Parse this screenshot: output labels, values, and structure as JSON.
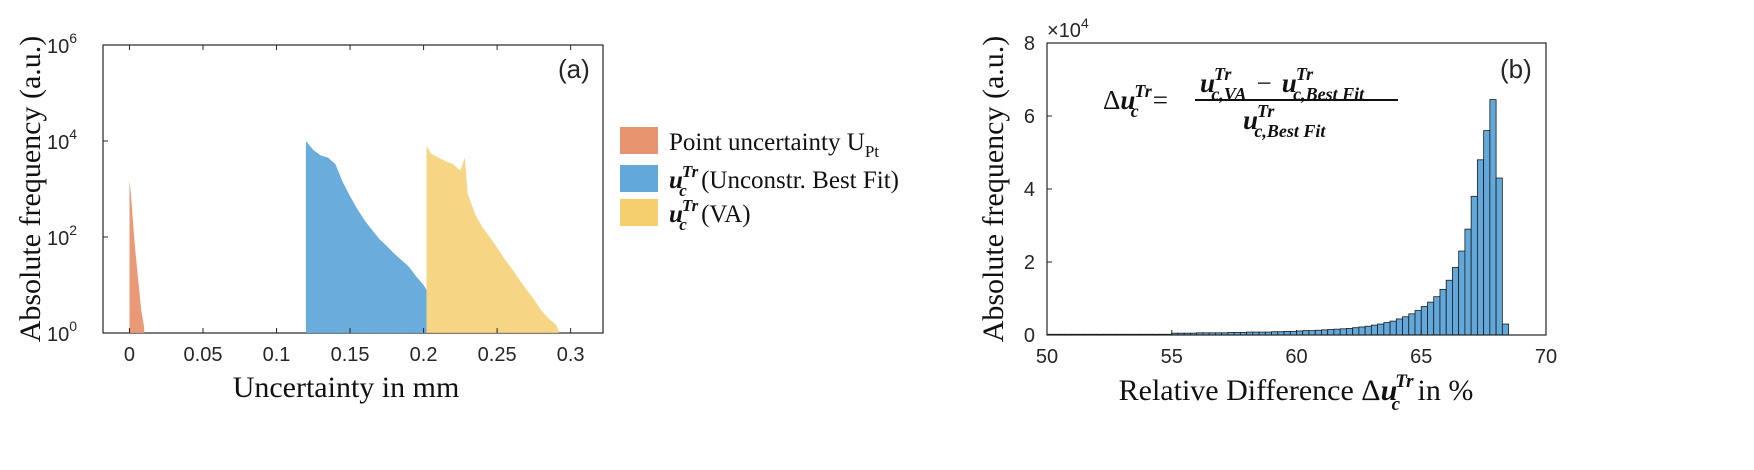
{
  "chart_data": [
    {
      "type": "histogram",
      "panel_label": "(a)",
      "xlabel": "Uncertainty in mm",
      "ylabel": "Absolute frequency (a.u.)",
      "xlim": [
        -0.018,
        0.322
      ],
      "ylim": [
        1,
        1000000
      ],
      "yscale": "log",
      "x_ticks": [
        0,
        0.05,
        0.1,
        0.15,
        0.2,
        0.25,
        0.3
      ],
      "x_tick_labels": [
        "0",
        "0.05",
        "0.1",
        "0.15",
        "0.2",
        "0.25",
        "0.3"
      ],
      "y_ticks": [
        {
          "base": "10",
          "exp": "0",
          "value": 1
        },
        {
          "base": "10",
          "exp": "2",
          "value": 100
        },
        {
          "base": "10",
          "exp": "4",
          "value": 10000
        },
        {
          "base": "10",
          "exp": "6",
          "value": 1000000
        }
      ],
      "legend_position": "outside-right",
      "legend": [
        {
          "text": "Point uncertainty U",
          "sub": "Pt",
          "color": "#e8946e"
        },
        {
          "sym": "u",
          "sub": "c",
          "sup": "Tr",
          "text": " (Unconstr. Best Fit)",
          "color": "#62a8da"
        },
        {
          "sym": "u",
          "sub": "c",
          "sup": "Tr",
          "text": " (VA)",
          "color": "#f5cf6e"
        }
      ],
      "series": [
        {
          "color": "#e8946e",
          "points": [
            [
              0.0,
              1500
            ],
            [
              0.001,
              800
            ],
            [
              0.002,
              300
            ],
            [
              0.003,
              120
            ],
            [
              0.004,
              50
            ],
            [
              0.005,
              25
            ],
            [
              0.006,
              12
            ],
            [
              0.007,
              6
            ],
            [
              0.008,
              3
            ],
            [
              0.009,
              2
            ],
            [
              0.01,
              1.3
            ]
          ]
        },
        {
          "color": "#62a8da",
          "points": [
            [
              0.12,
              10000
            ],
            [
              0.125,
              6500
            ],
            [
              0.13,
              5000
            ],
            [
              0.135,
              4500
            ],
            [
              0.14,
              3300
            ],
            [
              0.145,
              1400
            ],
            [
              0.15,
              700
            ],
            [
              0.155,
              380
            ],
            [
              0.16,
              220
            ],
            [
              0.165,
              140
            ],
            [
              0.17,
              90
            ],
            [
              0.175,
              65
            ],
            [
              0.18,
              45
            ],
            [
              0.185,
              33
            ],
            [
              0.19,
              24
            ],
            [
              0.195,
              15
            ],
            [
              0.2,
              10
            ],
            [
              0.202,
              8
            ]
          ]
        },
        {
          "color": "#f5cf6e",
          "points": [
            [
              0.202,
              8000
            ],
            [
              0.205,
              5500
            ],
            [
              0.21,
              4500
            ],
            [
              0.215,
              3800
            ],
            [
              0.22,
              3300
            ],
            [
              0.225,
              2400
            ],
            [
              0.228,
              4500
            ],
            [
              0.23,
              800
            ],
            [
              0.235,
              300
            ],
            [
              0.24,
              160
            ],
            [
              0.245,
              100
            ],
            [
              0.25,
              60
            ],
            [
              0.255,
              35
            ],
            [
              0.26,
              22
            ],
            [
              0.265,
              13
            ],
            [
              0.27,
              8
            ],
            [
              0.275,
              5
            ],
            [
              0.28,
              3
            ],
            [
              0.285,
              2
            ],
            [
              0.29,
              1.5
            ],
            [
              0.292,
              1.1
            ]
          ]
        }
      ]
    },
    {
      "type": "histogram",
      "panel_label": "(b)",
      "xlabel": "Relative Difference",
      "xlabel_tail": " in %",
      "ylabel": "Absolute frequency (a.u.)",
      "xlim": [
        50,
        70
      ],
      "ylim": [
        0,
        8
      ],
      "y_multiplier": {
        "base": "10",
        "exp": "4"
      },
      "x_ticks": [
        50,
        55,
        60,
        65,
        70
      ],
      "y_ticks": [
        0,
        2,
        4,
        6,
        8
      ],
      "formula": {
        "lhs_delta": "Δ",
        "sym": "u",
        "sub_lhs": "c",
        "sup": "Tr",
        "equals": "=",
        "num_sub_a": "c,VA",
        "minus": "−",
        "num_sub_b": "c,Best Fit",
        "den_sub": "c,Best Fit"
      },
      "delta_label": "Δ",
      "bar_color": "#62a8da",
      "bin_width": 0.25,
      "bins": [
        [
          50.0,
          0.02
        ],
        [
          50.25,
          0.02
        ],
        [
          50.5,
          0.02
        ],
        [
          50.75,
          0.02
        ],
        [
          51.0,
          0.02
        ],
        [
          51.25,
          0.02
        ],
        [
          51.5,
          0.02
        ],
        [
          51.75,
          0.02
        ],
        [
          52.0,
          0.02
        ],
        [
          52.25,
          0.02
        ],
        [
          52.5,
          0.02
        ],
        [
          52.75,
          0.02
        ],
        [
          53.0,
          0.02
        ],
        [
          53.25,
          0.02
        ],
        [
          53.5,
          0.02
        ],
        [
          53.75,
          0.02
        ],
        [
          54.0,
          0.02
        ],
        [
          54.25,
          0.02
        ],
        [
          54.5,
          0.02
        ],
        [
          54.75,
          0.02
        ],
        [
          55.0,
          0.05
        ],
        [
          55.25,
          0.05
        ],
        [
          55.5,
          0.05
        ],
        [
          55.75,
          0.05
        ],
        [
          56.0,
          0.06
        ],
        [
          56.25,
          0.06
        ],
        [
          56.5,
          0.06
        ],
        [
          56.75,
          0.06
        ],
        [
          57.0,
          0.06
        ],
        [
          57.25,
          0.07
        ],
        [
          57.5,
          0.07
        ],
        [
          57.75,
          0.07
        ],
        [
          58.0,
          0.08
        ],
        [
          58.25,
          0.08
        ],
        [
          58.5,
          0.08
        ],
        [
          58.75,
          0.08
        ],
        [
          59.0,
          0.09
        ],
        [
          59.25,
          0.09
        ],
        [
          59.5,
          0.1
        ],
        [
          59.75,
          0.1
        ],
        [
          60.0,
          0.11
        ],
        [
          60.25,
          0.12
        ],
        [
          60.5,
          0.12
        ],
        [
          60.75,
          0.13
        ],
        [
          61.0,
          0.14
        ],
        [
          61.25,
          0.15
        ],
        [
          61.5,
          0.16
        ],
        [
          61.75,
          0.17
        ],
        [
          62.0,
          0.18
        ],
        [
          62.25,
          0.2
        ],
        [
          62.5,
          0.22
        ],
        [
          62.75,
          0.24
        ],
        [
          63.0,
          0.27
        ],
        [
          63.25,
          0.3
        ],
        [
          63.5,
          0.34
        ],
        [
          63.75,
          0.38
        ],
        [
          64.0,
          0.44
        ],
        [
          64.25,
          0.5
        ],
        [
          64.5,
          0.58
        ],
        [
          64.75,
          0.67
        ],
        [
          65.0,
          0.78
        ],
        [
          65.25,
          0.9
        ],
        [
          65.5,
          1.05
        ],
        [
          65.75,
          1.25
        ],
        [
          66.0,
          1.5
        ],
        [
          66.25,
          1.85
        ],
        [
          66.5,
          2.3
        ],
        [
          66.75,
          2.9
        ],
        [
          67.0,
          3.8
        ],
        [
          67.25,
          4.8
        ],
        [
          67.5,
          5.6
        ],
        [
          67.75,
          6.45
        ],
        [
          68.0,
          4.3
        ],
        [
          68.25,
          0.3
        ]
      ]
    }
  ]
}
